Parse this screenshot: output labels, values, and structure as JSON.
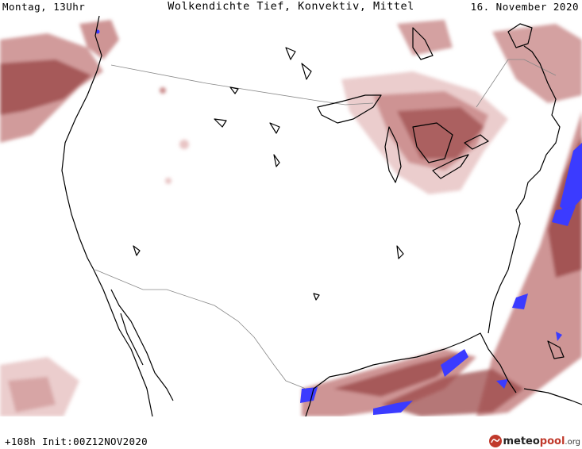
{
  "header": {
    "left": "Montag, 13Uhr",
    "center": "Wolkendichte  Tief, Konvektiv, Mittel",
    "right": "16. November 2020"
  },
  "footer": {
    "run_info": "+108h Init:00Z12NOV2020",
    "logo": {
      "meteo": "meteo",
      "pool": "pool",
      "org": ".org"
    }
  },
  "colors": {
    "cloud_light": "#e8c4c4",
    "cloud_mid": "#c98a8a",
    "cloud_dark": "#9c4a4a",
    "cloud_max": "#3b3bff",
    "coast": "#000000",
    "border": "#888888"
  }
}
